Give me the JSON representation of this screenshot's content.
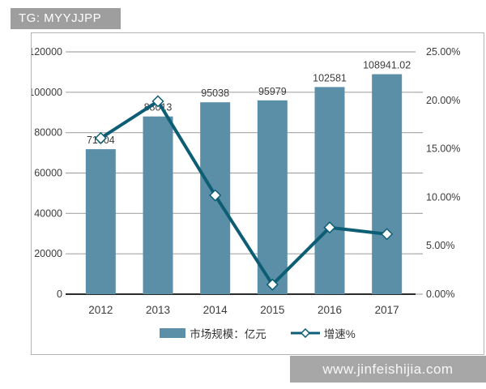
{
  "page": {
    "tag_label": "TG: MYYJJPP",
    "watermark": "www.jinfeishijia.com"
  },
  "colors": {
    "bar": "#5b8fa8",
    "line": "#0d5e75",
    "marker_fill": "#ffffff",
    "grid": "#a6a6a6",
    "axis_line": "#2b2b2b",
    "text": "#3c3c3c",
    "tag_bg": "#9e9e9e",
    "watermark_bg": "#a7a7a7",
    "chart_border": "#b5b5b5"
  },
  "legend": {
    "bar_label": "市场规模：亿元",
    "line_label": "增速%"
  },
  "chart_data": {
    "type": "combo",
    "categories": [
      "2012",
      "2013",
      "2014",
      "2015",
      "2016",
      "2017"
    ],
    "series": [
      {
        "name": "市场规模：亿元",
        "type": "bar",
        "axis": "left",
        "values": [
          71804,
          88013,
          95038,
          95979,
          102581,
          108941.02
        ],
        "labels": [
          "71804",
          "88013",
          "95038",
          "95979",
          "102581",
          "108941.02"
        ]
      },
      {
        "name": "增速%",
        "type": "line",
        "axis": "right",
        "values": [
          16.1,
          19.9,
          10.2,
          0.99,
          6.88,
          6.2
        ]
      }
    ],
    "left_axis": {
      "min": 0,
      "max": 120000,
      "step": 20000,
      "tick_labels": [
        "120000",
        "100000",
        "80000",
        "60000",
        "40000",
        "20000",
        "0"
      ]
    },
    "right_axis": {
      "min": 0,
      "max": 25,
      "step": 5,
      "tick_labels": [
        "25.00%",
        "20.00%",
        "15.00%",
        "10.00%",
        "5.00%",
        "0.00%"
      ]
    },
    "grid": true,
    "legend_position": "bottom",
    "title": ""
  }
}
